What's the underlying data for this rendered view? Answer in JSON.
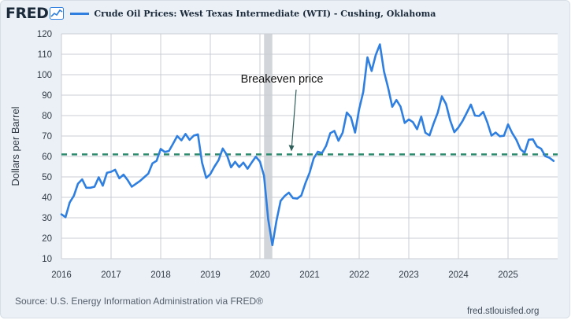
{
  "header": {
    "logo_text": "FRED",
    "logo_icon": "chart-line-icon",
    "legend_label": "Crude Oil Prices: West Texas Intermediate (WTI) - Cushing, Oklahoma"
  },
  "footer": {
    "source": "Source: U.S. Energy Information Administration via FRED®",
    "credit": "fred.stlouisfed.org"
  },
  "colors": {
    "series": "#2f7fe0",
    "breakeven": "#2e8b6e",
    "recession": "#d2d5d9",
    "background": "#eaf0f6"
  },
  "chart_data": {
    "type": "line",
    "title": "",
    "ylabel": "Dollars per Barrel",
    "xlabel": "",
    "ylim": [
      10,
      120
    ],
    "xlim": [
      "2016-01",
      "2025-12"
    ],
    "yticks": [
      "10",
      "20",
      "30",
      "40",
      "50",
      "60",
      "70",
      "80",
      "90",
      "100",
      "110",
      "120"
    ],
    "xticks": [
      "2016",
      "2017",
      "2018",
      "2019",
      "2020",
      "2021",
      "2022",
      "2023",
      "2024",
      "2025"
    ],
    "grid": true,
    "recession": {
      "start": "2020-02",
      "end": "2020-04"
    },
    "annotation": {
      "text": "Breakeven price",
      "value": 61
    },
    "series": [
      {
        "name": "Crude Oil Prices: West Texas Intermediate (WTI) - Cushing, Oklahoma",
        "x": [
          "2016-01",
          "2016-02",
          "2016-03",
          "2016-04",
          "2016-05",
          "2016-06",
          "2016-07",
          "2016-08",
          "2016-09",
          "2016-10",
          "2016-11",
          "2016-12",
          "2017-01",
          "2017-02",
          "2017-03",
          "2017-04",
          "2017-05",
          "2017-06",
          "2017-07",
          "2017-08",
          "2017-09",
          "2017-10",
          "2017-11",
          "2017-12",
          "2018-01",
          "2018-02",
          "2018-03",
          "2018-04",
          "2018-05",
          "2018-06",
          "2018-07",
          "2018-08",
          "2018-09",
          "2018-10",
          "2018-11",
          "2018-12",
          "2019-01",
          "2019-02",
          "2019-03",
          "2019-04",
          "2019-05",
          "2019-06",
          "2019-07",
          "2019-08",
          "2019-09",
          "2019-10",
          "2019-11",
          "2019-12",
          "2020-01",
          "2020-02",
          "2020-03",
          "2020-04",
          "2020-05",
          "2020-06",
          "2020-07",
          "2020-08",
          "2020-09",
          "2020-10",
          "2020-11",
          "2020-12",
          "2021-01",
          "2021-02",
          "2021-03",
          "2021-04",
          "2021-05",
          "2021-06",
          "2021-07",
          "2021-08",
          "2021-09",
          "2021-10",
          "2021-11",
          "2021-12",
          "2022-01",
          "2022-02",
          "2022-03",
          "2022-04",
          "2022-05",
          "2022-06",
          "2022-07",
          "2022-08",
          "2022-09",
          "2022-10",
          "2022-11",
          "2022-12",
          "2023-01",
          "2023-02",
          "2023-03",
          "2023-04",
          "2023-05",
          "2023-06",
          "2023-07",
          "2023-08",
          "2023-09",
          "2023-10",
          "2023-11",
          "2023-12",
          "2024-01",
          "2024-02",
          "2024-03",
          "2024-04",
          "2024-05",
          "2024-06",
          "2024-07",
          "2024-08",
          "2024-09",
          "2024-10",
          "2024-11",
          "2024-12",
          "2025-01",
          "2025-02",
          "2025-03",
          "2025-04",
          "2025-05",
          "2025-06",
          "2025-07",
          "2025-08",
          "2025-09",
          "2025-10",
          "2025-11",
          "2025-12"
        ],
        "values": [
          31.7,
          30.3,
          37.5,
          40.8,
          46.7,
          48.8,
          44.7,
          44.7,
          45.2,
          49.8,
          45.7,
          52.0,
          52.5,
          53.5,
          49.3,
          51.1,
          48.5,
          45.2,
          46.6,
          48.0,
          49.8,
          51.6,
          56.6,
          57.9,
          63.7,
          62.2,
          62.7,
          66.3,
          70.0,
          67.9,
          71.0,
          68.1,
          70.2,
          70.8,
          57.0,
          49.5,
          51.4,
          55.0,
          58.2,
          63.9,
          60.8,
          54.7,
          57.4,
          54.8,
          57.0,
          54.0,
          57.0,
          59.9,
          57.5,
          50.5,
          29.2,
          16.6,
          28.5,
          38.3,
          40.7,
          42.3,
          39.6,
          39.4,
          40.9,
          47.0,
          52.0,
          59.0,
          62.3,
          61.7,
          65.2,
          71.4,
          72.5,
          67.7,
          71.6,
          81.5,
          79.2,
          71.7,
          83.2,
          91.6,
          108.5,
          101.8,
          109.6,
          114.8,
          101.6,
          93.7,
          84.3,
          87.6,
          84.4,
          76.4,
          78.1,
          76.8,
          73.3,
          79.5,
          71.6,
          70.3,
          76.1,
          81.4,
          89.4,
          85.6,
          77.7,
          71.9,
          74.2,
          77.3,
          81.3,
          85.4,
          80.0,
          79.8,
          81.8,
          76.7,
          70.2,
          71.7,
          69.9,
          70.1,
          75.7,
          71.5,
          68.2,
          63.5,
          61.8,
          68.2,
          68.4,
          64.9,
          63.8,
          60.1,
          59.4,
          57.8
        ]
      }
    ]
  }
}
